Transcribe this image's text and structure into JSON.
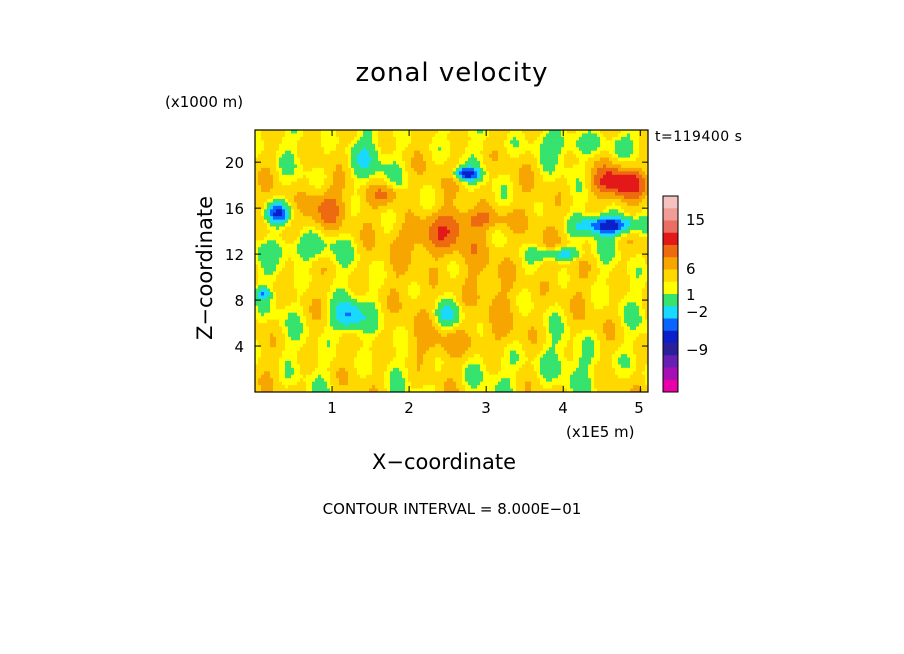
{
  "chart_data": {
    "type": "heatmap",
    "title": "zonal velocity",
    "xlabel": "X−coordinate",
    "ylabel": "Z−coordinate",
    "x_unit": "(x1E5 m)",
    "y_unit": "(x1000 m)",
    "time_label": "t=119400 s",
    "contour_interval_label": "CONTOUR INTERVAL = 8.000E−01",
    "xlim": [
      0,
      5.1
    ],
    "ylim": [
      0,
      22.8
    ],
    "x_ticks": [
      "1",
      "2",
      "3",
      "4",
      "5"
    ],
    "y_ticks": [
      "4",
      "8",
      "12",
      "16",
      "20"
    ],
    "colorbar": {
      "tick_labels": [
        "15",
        "6",
        "1",
        "−2",
        "−9"
      ],
      "colors_top_to_bottom": [
        "#f6c2c0",
        "#ef9d96",
        "#ea6e64",
        "#e31818",
        "#ee6a10",
        "#f7a500",
        "#ffd800",
        "#ffff00",
        "#35e36e",
        "#19d9ff",
        "#0a64ff",
        "#0b20c8",
        "#2b1f9a",
        "#6a1fb4",
        "#a50fb4",
        "#e800a8"
      ]
    },
    "notable_features": [
      {
        "x": 4.6,
        "z": 14.5,
        "sign": "negative",
        "strength": "strong"
      },
      {
        "x": 0.3,
        "z": 15.5,
        "sign": "negative",
        "strength": "strong"
      },
      {
        "x": 2.75,
        "z": 19.0,
        "sign": "negative",
        "strength": "strong"
      },
      {
        "x": 1.2,
        "z": 6.5,
        "sign": "negative",
        "strength": "moderate"
      },
      {
        "x": 2.3,
        "z": 13.5,
        "sign": "positive",
        "strength": "moderate"
      },
      {
        "x": 4.75,
        "z": 18.2,
        "sign": "positive",
        "strength": "moderate"
      },
      {
        "x": 0.9,
        "z": 16.0,
        "sign": "positive",
        "strength": "moderate"
      },
      {
        "x": 2.9,
        "z": 15.0,
        "sign": "positive",
        "strength": "moderate"
      },
      {
        "x": 2.4,
        "z": 6.0,
        "sign": "positive",
        "strength": "weak"
      }
    ]
  }
}
